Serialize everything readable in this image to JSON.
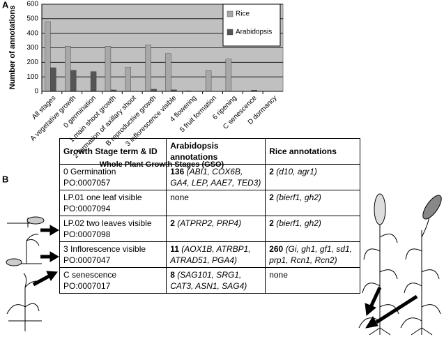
{
  "panel_a_label": "A",
  "panel_b_label": "B",
  "chart_data": {
    "type": "bar",
    "x_label": "Whole Plant Growth Stages (GSO)",
    "y_label": "Number of annotations",
    "categories": [
      "All stages",
      "A vegetative growth",
      "0 germination",
      "1 main shoot growth",
      "2 formation of axillary shoot",
      "B reproductive growth",
      "3 inflorescence visible",
      "4 flowering",
      "5 fruit formation",
      "6 ripening",
      "C senescence",
      "D dormancy"
    ],
    "series": [
      {
        "name": "Rice",
        "color": "#a8a8a8",
        "values": [
          480,
          310,
          2,
          310,
          165,
          320,
          260,
          4,
          143,
          222,
          0,
          0
        ]
      },
      {
        "name": "Arabidopsis",
        "color": "#555555",
        "values": [
          163,
          145,
          136,
          10,
          0,
          15,
          11,
          0,
          0,
          0,
          8,
          0
        ]
      }
    ],
    "ylim": [
      0,
      600
    ],
    "yticks": [
      0,
      100,
      200,
      300,
      400,
      500,
      600
    ],
    "grid": true,
    "legend": "top-right",
    "background": "#c0c0c0"
  },
  "table": {
    "headers": [
      "Growth Stage term & ID",
      "Arabidopsis annotations",
      "Rice annotations"
    ],
    "rows": [
      {
        "term": "0 Germination",
        "id": "PO:0007057",
        "arabidopsis": {
          "count": "136",
          "genes": "(ABI1, COX6B, GA4, LEP, AAE7, TED3)"
        },
        "rice": {
          "count": "2",
          "genes": "(d10, agr1)"
        }
      },
      {
        "term": "LP.01 one leaf visible",
        "id": "PO:0007094",
        "arabidopsis": {
          "text": "none"
        },
        "rice": {
          "count": "2",
          "genes": "(bierf1, gh2)"
        }
      },
      {
        "term": "LP.02 two leaves visible",
        "id": "PO:0007098",
        "arabidopsis": {
          "count": "2",
          "genes": "(ATPRP2, PRP4)"
        },
        "rice": {
          "count": "2",
          "genes": "(bierf1, gh2)"
        }
      },
      {
        "term": "3 Inflorescence visible",
        "id": "PO:0007047",
        "arabidopsis": {
          "count": "11",
          "genes": "(AOX1B, ATRBP1, ATRAD51, PGA4)"
        },
        "rice": {
          "count": "260",
          "genes": "(Gi, gh1, gf1, sd1, prp1, Rcn1, Rcn2)"
        }
      },
      {
        "term": "C senescence",
        "id": "PO:0007017",
        "arabidopsis": {
          "count": "8",
          "genes": "(SAG101, SRG1, CAT3, ASN1, SAG4)"
        },
        "rice": {
          "text": "none"
        }
      }
    ]
  }
}
